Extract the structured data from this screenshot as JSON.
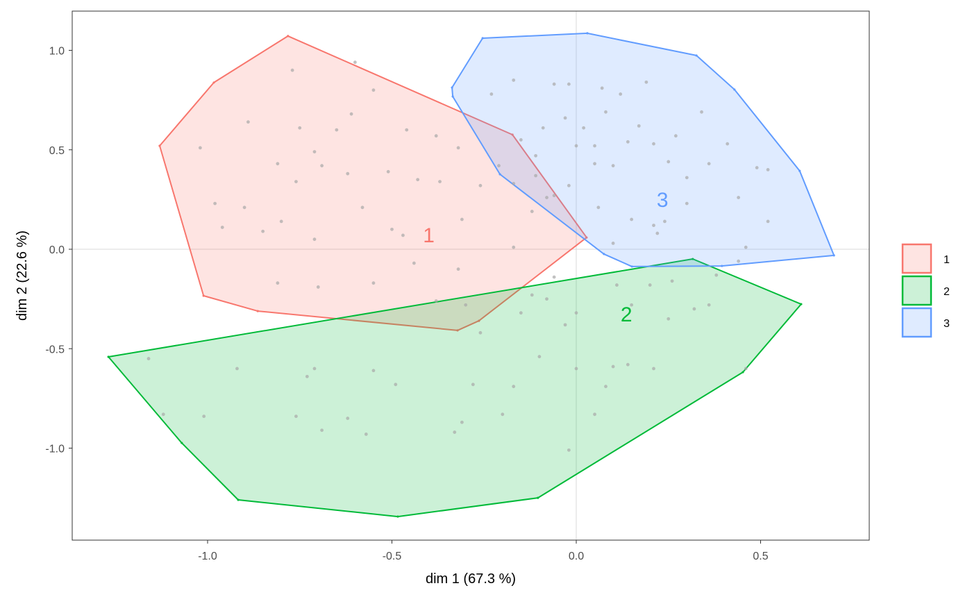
{
  "chart_data": {
    "type": "scatter",
    "subtype": "cluster-plot-convex-hulls",
    "title": "",
    "xlabel": "dim 1 (67.3 %)",
    "ylabel": "dim 2 (22.6 %)",
    "xlim": [
      -1.36,
      0.8
    ],
    "ylim": [
      -1.46,
      1.2
    ],
    "xticks": [
      -1.0,
      -0.5,
      0.0,
      0.5
    ],
    "xtick_labels": [
      "-1.0",
      "-0.5",
      "0.0",
      "0.5"
    ],
    "yticks": [
      1.0,
      0.5,
      0.0,
      -0.5,
      -1.0
    ],
    "ytick_labels": [
      "1.0",
      "0.5",
      "0.0",
      "-0.5",
      "-1.0"
    ],
    "grid": false,
    "reference_lines": {
      "x": 0,
      "y": 0
    },
    "legend": {
      "position": "right",
      "entries": [
        "1",
        "2",
        "3"
      ]
    },
    "clusters": [
      {
        "name": "1",
        "color": "#F8766D",
        "label_pos": [
          -0.4,
          0.07
        ],
        "hull": [
          [
            -0.782,
            1.072
          ],
          [
            -0.983,
            0.838
          ],
          [
            -1.13,
            0.52
          ],
          [
            -1.011,
            -0.234
          ],
          [
            -0.864,
            -0.311
          ],
          [
            -0.322,
            -0.408
          ],
          [
            -0.264,
            -0.36
          ],
          [
            0.028,
            0.059
          ],
          [
            -0.173,
            0.576
          ]
        ],
        "points": [
          [
            -0.77,
            0.9
          ],
          [
            -0.6,
            0.94
          ],
          [
            -0.89,
            0.64
          ],
          [
            -1.02,
            0.51
          ],
          [
            -0.75,
            0.61
          ],
          [
            -0.98,
            0.23
          ],
          [
            -0.96,
            0.11
          ],
          [
            -0.9,
            0.21
          ],
          [
            -0.85,
            0.09
          ],
          [
            -0.8,
            0.14
          ],
          [
            -0.81,
            0.43
          ],
          [
            -0.76,
            0.34
          ],
          [
            -0.71,
            0.49
          ],
          [
            -0.69,
            0.42
          ],
          [
            -0.65,
            0.6
          ],
          [
            -0.62,
            0.38
          ],
          [
            -0.61,
            0.68
          ],
          [
            -0.58,
            0.21
          ],
          [
            -0.55,
            0.8
          ],
          [
            -0.51,
            0.39
          ],
          [
            -0.5,
            0.1
          ],
          [
            -0.46,
            0.6
          ],
          [
            -0.43,
            0.35
          ],
          [
            -0.38,
            0.57
          ],
          [
            -0.37,
            0.34
          ],
          [
            -0.32,
            0.51
          ],
          [
            -0.31,
            0.15
          ],
          [
            -0.26,
            0.32
          ],
          [
            -0.32,
            -0.1
          ],
          [
            -0.21,
            0.42
          ],
          [
            -0.17,
            0.33
          ],
          [
            -0.17,
            0.01
          ],
          [
            -0.12,
            0.19
          ],
          [
            -0.08,
            0.26
          ],
          [
            -0.55,
            -0.17
          ],
          [
            -0.7,
            -0.19
          ],
          [
            -0.81,
            -0.17
          ],
          [
            -0.71,
            0.05
          ],
          [
            -0.47,
            0.07
          ],
          [
            -0.44,
            -0.07
          ]
        ]
      },
      {
        "name": "2",
        "color": "#00BA38",
        "label_pos": [
          0.136,
          -0.328
        ],
        "hull": [
          [
            -1.269,
            -0.541
          ],
          [
            -1.07,
            -0.974
          ],
          [
            -0.917,
            -1.26
          ],
          [
            -0.484,
            -1.344
          ],
          [
            -0.104,
            -1.25
          ],
          [
            0.452,
            -0.618
          ],
          [
            0.61,
            -0.276
          ],
          [
            0.316,
            -0.049
          ]
        ],
        "points": [
          [
            -1.16,
            -0.55
          ],
          [
            -1.12,
            -0.83
          ],
          [
            -1.01,
            -0.84
          ],
          [
            -0.92,
            -0.6
          ],
          [
            -0.73,
            -0.64
          ],
          [
            -0.71,
            -0.6
          ],
          [
            -0.76,
            -0.84
          ],
          [
            -0.69,
            -0.91
          ],
          [
            -0.62,
            -0.85
          ],
          [
            -0.57,
            -0.93
          ],
          [
            -0.55,
            -0.61
          ],
          [
            -0.49,
            -0.68
          ],
          [
            -0.33,
            -0.92
          ],
          [
            -0.31,
            -0.87
          ],
          [
            -0.28,
            -0.68
          ],
          [
            -0.26,
            -0.42
          ],
          [
            -0.2,
            -0.83
          ],
          [
            -0.17,
            -0.69
          ],
          [
            -0.15,
            -0.32
          ],
          [
            -0.12,
            -0.23
          ],
          [
            -0.1,
            -0.54
          ],
          [
            -0.08,
            -0.25
          ],
          [
            -0.03,
            -0.38
          ],
          [
            0.0,
            -0.32
          ],
          [
            -0.02,
            -1.01
          ],
          [
            0.0,
            -0.6
          ],
          [
            0.05,
            -0.83
          ],
          [
            0.08,
            -0.69
          ],
          [
            0.1,
            -0.59
          ],
          [
            0.14,
            -0.58
          ],
          [
            0.21,
            -0.6
          ],
          [
            0.2,
            -0.18
          ],
          [
            0.26,
            -0.16
          ],
          [
            0.32,
            -0.3
          ],
          [
            0.36,
            -0.28
          ],
          [
            0.38,
            -0.13
          ],
          [
            0.44,
            -0.06
          ],
          [
            0.46,
            -0.6
          ],
          [
            0.15,
            -0.28
          ],
          [
            0.25,
            -0.35
          ],
          [
            0.11,
            -0.18
          ],
          [
            -0.3,
            -0.28
          ],
          [
            -0.38,
            -0.26
          ],
          [
            -0.06,
            -0.14
          ]
        ]
      },
      {
        "name": "3",
        "color": "#619CFF",
        "label_pos": [
          0.234,
          0.248
        ],
        "hull": [
          [
            -0.254,
            1.061
          ],
          [
            0.03,
            1.086
          ],
          [
            0.326,
            0.974
          ],
          [
            0.429,
            0.803
          ],
          [
            0.606,
            0.394
          ],
          [
            0.699,
            -0.031
          ],
          [
            0.395,
            -0.084
          ],
          [
            0.151,
            -0.087
          ],
          [
            0.075,
            -0.024
          ],
          [
            -0.207,
            0.377
          ],
          [
            -0.335,
            0.768
          ],
          [
            -0.337,
            0.813
          ]
        ],
        "points": [
          [
            -0.23,
            0.78
          ],
          [
            -0.17,
            0.85
          ],
          [
            -0.06,
            0.83
          ],
          [
            -0.02,
            0.83
          ],
          [
            0.07,
            0.81
          ],
          [
            0.19,
            0.84
          ],
          [
            0.12,
            0.78
          ],
          [
            0.08,
            0.69
          ],
          [
            0.05,
            0.52
          ],
          [
            0.02,
            0.61
          ],
          [
            -0.03,
            0.66
          ],
          [
            -0.09,
            0.61
          ],
          [
            -0.15,
            0.55
          ],
          [
            -0.11,
            0.47
          ],
          [
            0.0,
            0.52
          ],
          [
            0.05,
            0.43
          ],
          [
            0.1,
            0.42
          ],
          [
            0.14,
            0.54
          ],
          [
            0.21,
            0.53
          ],
          [
            0.25,
            0.44
          ],
          [
            0.3,
            0.36
          ],
          [
            0.36,
            0.43
          ],
          [
            0.41,
            0.53
          ],
          [
            0.49,
            0.41
          ],
          [
            0.52,
            0.4
          ],
          [
            0.44,
            0.26
          ],
          [
            0.52,
            0.14
          ],
          [
            0.46,
            0.01
          ],
          [
            0.34,
            0.69
          ],
          [
            0.27,
            0.57
          ],
          [
            0.17,
            0.62
          ],
          [
            0.24,
            0.14
          ],
          [
            0.3,
            0.23
          ],
          [
            0.21,
            0.12
          ],
          [
            0.22,
            0.08
          ],
          [
            0.15,
            0.15
          ],
          [
            0.1,
            0.03
          ],
          [
            0.06,
            0.21
          ],
          [
            -0.02,
            0.32
          ],
          [
            -0.06,
            0.27
          ],
          [
            -0.11,
            0.37
          ]
        ]
      }
    ]
  }
}
